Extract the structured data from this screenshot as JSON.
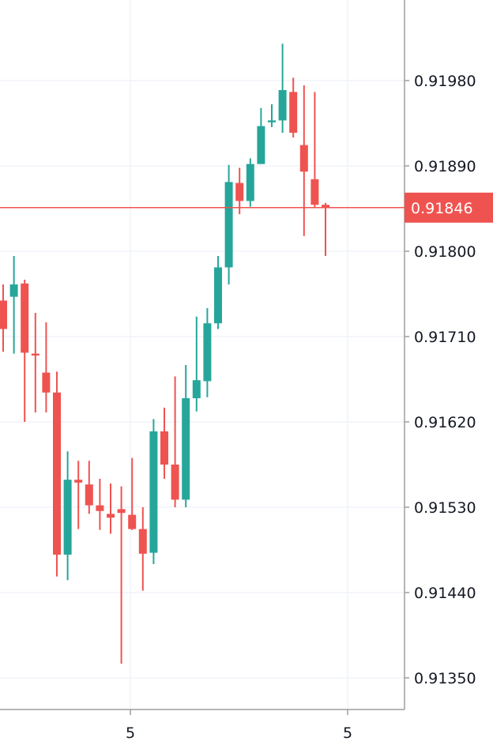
{
  "chart_data": {
    "type": "candlestick",
    "title": "",
    "xlabel": "",
    "ylabel": "",
    "ylim": [
      0.91316,
      0.92049
    ],
    "y_ticks": [
      "0.91980",
      "0.91890",
      "0.91800",
      "0.91710",
      "0.91620",
      "0.91530",
      "0.91440",
      "0.91350"
    ],
    "x_ticks": [
      "5",
      "5"
    ],
    "grid": true,
    "current_price": "0.91846",
    "colors": {
      "up": "#26a69a",
      "down": "#ef5350",
      "grid": "#f0f3fa",
      "axis": "#9e9e9e",
      "text": "#131722"
    },
    "candles": [
      {
        "o": 0.91748,
        "h": 0.91765,
        "l": 0.91694,
        "c": 0.91718
      },
      {
        "o": 0.91752,
        "h": 0.91795,
        "l": 0.91692,
        "c": 0.91765
      },
      {
        "o": 0.91766,
        "h": 0.9177,
        "l": 0.9162,
        "c": 0.91693
      },
      {
        "o": 0.91692,
        "h": 0.91735,
        "l": 0.9163,
        "c": 0.9169
      },
      {
        "o": 0.91672,
        "h": 0.91725,
        "l": 0.9163,
        "c": 0.91651
      },
      {
        "o": 0.91651,
        "h": 0.91673,
        "l": 0.91457,
        "c": 0.9148
      },
      {
        "o": 0.9148,
        "h": 0.91589,
        "l": 0.91453,
        "c": 0.91559
      },
      {
        "o": 0.91559,
        "h": 0.91579,
        "l": 0.91507,
        "c": 0.91556
      },
      {
        "o": 0.91554,
        "h": 0.91579,
        "l": 0.91523,
        "c": 0.91532
      },
      {
        "o": 0.91532,
        "h": 0.9156,
        "l": 0.91506,
        "c": 0.91526
      },
      {
        "o": 0.91523,
        "h": 0.91555,
        "l": 0.91502,
        "c": 0.91519
      },
      {
        "o": 0.91528,
        "h": 0.91552,
        "l": 0.91365,
        "c": 0.91524
      },
      {
        "o": 0.91522,
        "h": 0.91582,
        "l": 0.91506,
        "c": 0.91507
      },
      {
        "o": 0.91507,
        "h": 0.9153,
        "l": 0.91442,
        "c": 0.91481
      },
      {
        "o": 0.91482,
        "h": 0.91623,
        "l": 0.9147,
        "c": 0.9161
      },
      {
        "o": 0.9161,
        "h": 0.91635,
        "l": 0.9156,
        "c": 0.91575
      },
      {
        "o": 0.91575,
        "h": 0.91668,
        "l": 0.9153,
        "c": 0.91538
      },
      {
        "o": 0.91538,
        "h": 0.9168,
        "l": 0.9153,
        "c": 0.91645
      },
      {
        "o": 0.91645,
        "h": 0.91731,
        "l": 0.91631,
        "c": 0.91664
      },
      {
        "o": 0.91663,
        "h": 0.9174,
        "l": 0.91646,
        "c": 0.91724
      },
      {
        "o": 0.91724,
        "h": 0.91795,
        "l": 0.91718,
        "c": 0.91783
      },
      {
        "o": 0.91783,
        "h": 0.91891,
        "l": 0.91765,
        "c": 0.91873
      },
      {
        "o": 0.91872,
        "h": 0.91888,
        "l": 0.91839,
        "c": 0.91853
      },
      {
        "o": 0.91853,
        "h": 0.91898,
        "l": 0.91847,
        "c": 0.91892
      },
      {
        "o": 0.91892,
        "h": 0.91951,
        "l": 0.91892,
        "c": 0.91932
      },
      {
        "o": 0.91936,
        "h": 0.91955,
        "l": 0.91931,
        "c": 0.91938
      },
      {
        "o": 0.91938,
        "h": 0.92019,
        "l": 0.91925,
        "c": 0.9197
      },
      {
        "o": 0.91968,
        "h": 0.91983,
        "l": 0.9192,
        "c": 0.91925
      },
      {
        "o": 0.91912,
        "h": 0.91975,
        "l": 0.91816,
        "c": 0.91884
      },
      {
        "o": 0.91876,
        "h": 0.91968,
        "l": 0.91846,
        "c": 0.91849
      },
      {
        "o": 0.91849,
        "h": 0.91851,
        "l": 0.91795,
        "c": 0.91846
      }
    ]
  }
}
